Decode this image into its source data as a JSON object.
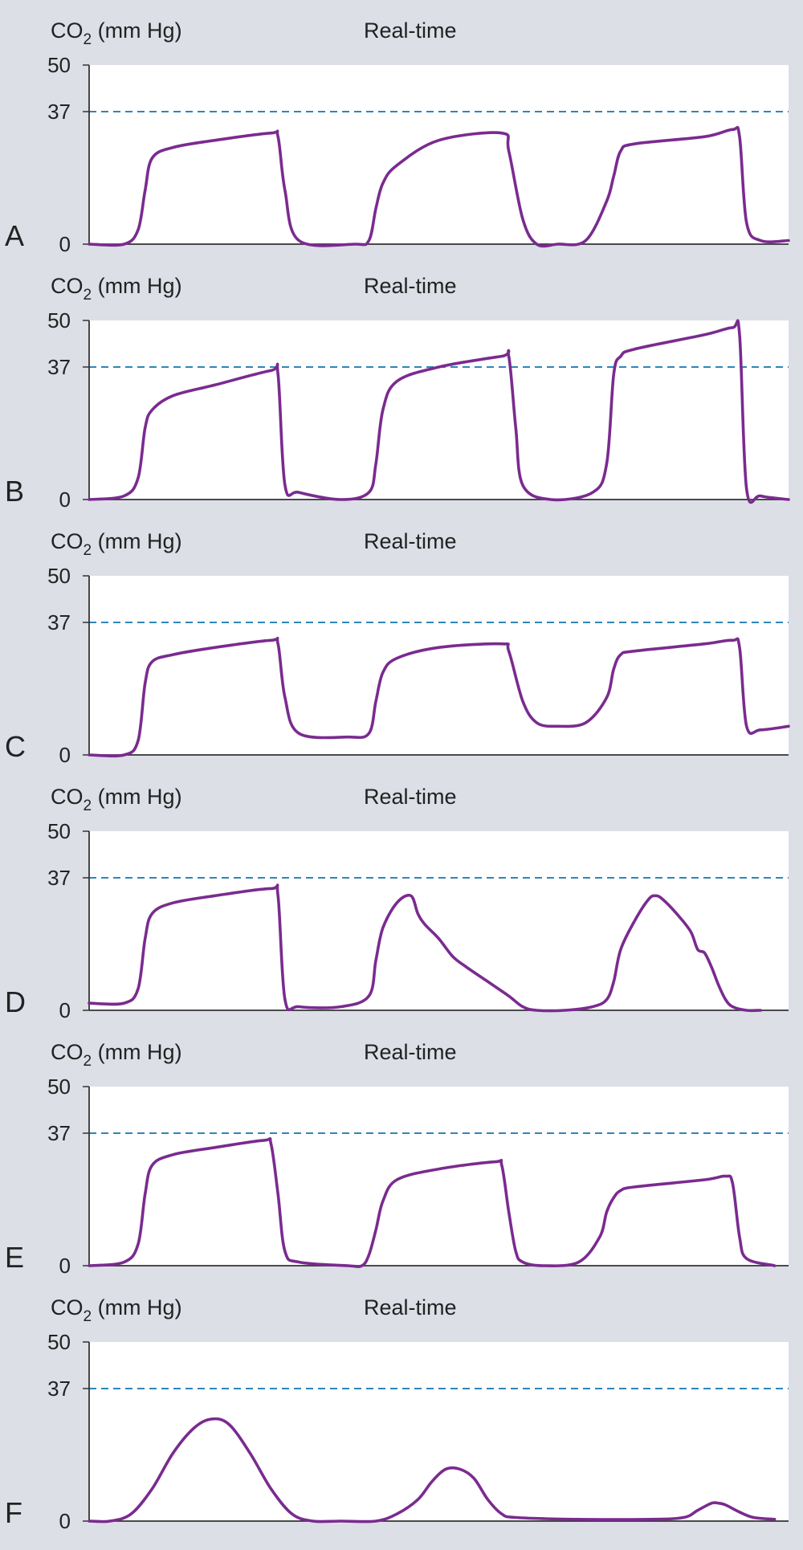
{
  "chart_data": {
    "type": "line",
    "panels": [
      {
        "letter": "A",
        "ylabel_main": "CO",
        "ylabel_sub": "2",
        "ylabel_unit": " (mm Hg)",
        "header": "Real-time",
        "yticks": [
          "50",
          "37",
          "0"
        ],
        "ylim": [
          0,
          50
        ],
        "reference": 37,
        "xlim": [
          0,
          100
        ],
        "series": [
          {
            "x": [
              0,
              5,
              7,
              8,
              9,
              12,
              18,
              26,
              27,
              28,
              30,
              38,
              40,
              41,
              42,
              44,
              50,
              59,
              60,
              62,
              64,
              67,
              71,
              74,
              75,
              76,
              78,
              88,
              92,
              93,
              94,
              96,
              100
            ],
            "y": [
              0,
              0,
              4,
              15,
              24,
              27,
              29,
              31,
              30,
              15,
              1,
              0,
              1,
              10,
              17,
              22,
              29,
              31,
              26,
              7,
              0,
              0,
              1,
              12,
              19,
              26,
              28,
              30,
              32,
              30,
              6,
              1,
              1
            ]
          }
        ]
      },
      {
        "letter": "B",
        "ylabel_main": "CO",
        "ylabel_sub": "2",
        "ylabel_unit": " (mm Hg)",
        "header": "Real-time",
        "yticks": [
          "50",
          "37",
          "0"
        ],
        "ylim": [
          0,
          50
        ],
        "reference": 37,
        "xlim": [
          0,
          100
        ],
        "series": [
          {
            "x": [
              0,
              5,
              7,
              8,
              9,
              12,
              18,
              26,
              27,
              28,
              30,
              36,
              40,
              41,
              42,
              44,
              50,
              59,
              60,
              61,
              62,
              66,
              72,
              74,
              75,
              76,
              78,
              88,
              92,
              93,
              94,
              96,
              100
            ],
            "y": [
              0,
              1,
              6,
              20,
              25,
              29,
              32,
              36,
              35,
              4,
              2,
              0,
              2,
              10,
              25,
              33,
              37,
              40,
              40,
              20,
              4,
              0,
              2,
              10,
              35,
              40,
              42,
              46,
              48,
              46,
              3,
              1,
              0
            ]
          }
        ]
      },
      {
        "letter": "C",
        "ylabel_main": "CO",
        "ylabel_sub": "2",
        "ylabel_unit": " (mm Hg)",
        "header": "Real-time",
        "yticks": [
          "50",
          "37",
          "0"
        ],
        "ylim": [
          0,
          50
        ],
        "reference": 37,
        "xlim": [
          0,
          100
        ],
        "series": [
          {
            "x": [
              0,
              5,
              7,
              8,
              9,
              12,
              18,
              26,
              27,
              28,
              30,
              37,
              40,
              41,
              42,
              44,
              50,
              59,
              60,
              62,
              64,
              67,
              71,
              74,
              75,
              76,
              78,
              88,
              92,
              93,
              94,
              96,
              100
            ],
            "y": [
              0,
              0,
              4,
              20,
              26,
              28,
              30,
              32,
              31,
              16,
              6,
              5,
              6,
              15,
              23,
              27,
              30,
              31,
              29,
              15,
              9,
              8,
              9,
              16,
              24,
              28,
              29,
              31,
              32,
              30,
              8,
              7,
              8
            ]
          }
        ]
      },
      {
        "letter": "D",
        "ylabel_main": "CO",
        "ylabel_sub": "2",
        "ylabel_unit": " (mm Hg)",
        "header": "Real-time",
        "yticks": [
          "50",
          "37",
          "0"
        ],
        "ylim": [
          0,
          50
        ],
        "reference": 37,
        "xlim": [
          0,
          100
        ],
        "series": [
          {
            "x": [
              0,
              5,
              7,
              8,
              9,
              12,
              18,
              26,
              27,
              28,
              30,
              36,
              40,
              41,
              42,
              44,
              46,
              47,
              48,
              50,
              52,
              54,
              57,
              60,
              62,
              64,
              68,
              72,
              74,
              75,
              76,
              78,
              80,
              81,
              82,
              84,
              86,
              87,
              88,
              89,
              90,
              91,
              92,
              94,
              96
            ],
            "y": [
              2,
              2,
              6,
              20,
              27,
              30,
              32,
              34,
              32,
              3,
              1,
              1,
              4,
              14,
              23,
              30,
              32,
              27,
              24,
              20,
              15,
              12,
              8,
              4,
              1,
              0,
              0,
              1,
              3,
              8,
              17,
              25,
              31,
              32,
              31,
              27,
              22,
              17,
              16,
              12,
              7,
              3,
              1,
              0,
              0
            ]
          }
        ]
      },
      {
        "letter": "E",
        "ylabel_main": "CO",
        "ylabel_sub": "2",
        "ylabel_unit": " (mm Hg)",
        "header": "Real-time",
        "yticks": [
          "50",
          "37",
          "0"
        ],
        "ylim": [
          0,
          50
        ],
        "reference": 37,
        "xlim": [
          0,
          100
        ],
        "series": [
          {
            "x": [
              0,
              5,
              7,
              8,
              9,
              12,
              18,
              25,
              26,
              27,
              28,
              30,
              37,
              39,
              40,
              41,
              42,
              44,
              50,
              58,
              59,
              60,
              61,
              62,
              65,
              70,
              73,
              74,
              75,
              76,
              78,
              88,
              91,
              92,
              93,
              94,
              98
            ],
            "y": [
              0,
              1,
              6,
              20,
              28,
              31,
              33,
              35,
              34,
              20,
              4,
              1,
              0,
              0,
              3,
              10,
              18,
              24,
              27,
              29,
              28,
              15,
              4,
              1,
              0,
              1,
              8,
              15,
              19,
              21,
              22,
              24,
              25,
              23,
              8,
              2,
              0
            ]
          }
        ]
      },
      {
        "letter": "F",
        "ylabel_main": "CO",
        "ylabel_sub": "2",
        "ylabel_unit": " (mm Hg)",
        "header": "Real-time",
        "yticks": [
          "50",
          "37",
          "0"
        ],
        "ylim": [
          0,
          50
        ],
        "reference": 37,
        "xlim": [
          0,
          100
        ],
        "series": [
          {
            "x": [
              0,
              3,
              6,
              9,
              12,
              15,
              17.5,
              20,
              23,
              26,
              29,
              32,
              36,
              41,
              44,
              47,
              49,
              51,
              53,
              55,
              57,
              59,
              61,
              70,
              80,
              85,
              87,
              89,
              90,
              91,
              93,
              95,
              98
            ],
            "y": [
              0,
              0,
              2,
              9,
              19,
              26,
              28.5,
              27,
              19,
              9,
              2,
              0,
              0,
              0,
              2,
              6,
              11,
              14.5,
              14.5,
              12,
              6,
              2,
              1,
              0.5,
              0.5,
              1,
              3,
              5,
              5,
              4.5,
              2.5,
              1,
              0.5
            ]
          }
        ]
      }
    ]
  }
}
